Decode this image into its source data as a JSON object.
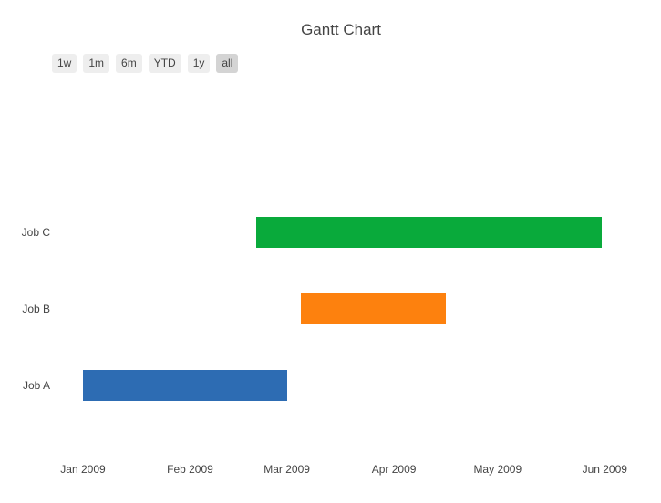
{
  "title": "Gantt Chart",
  "range_selector": {
    "text_color": "#444444",
    "button_bg": "#eeeeee",
    "active_bg": "#d4d4d4",
    "buttons": [
      {
        "label": "1w",
        "active": false
      },
      {
        "label": "1m",
        "active": false
      },
      {
        "label": "6m",
        "active": false
      },
      {
        "label": "YTD",
        "active": false
      },
      {
        "label": "1y",
        "active": false
      },
      {
        "label": "all",
        "active": true
      }
    ]
  },
  "chart_data": {
    "type": "bar",
    "subtype": "gantt",
    "title": "Gantt Chart",
    "orientation": "horizontal",
    "grid": false,
    "legend": false,
    "x_axis_type": "date",
    "x_range": [
      "2009-01-01",
      "2009-06-01"
    ],
    "tasks": [
      {
        "name": "Job A",
        "start": "2009-01-01",
        "finish": "2009-02-28",
        "color": "#2d6cb3"
      },
      {
        "name": "Job B",
        "start": "2009-03-05",
        "finish": "2009-04-15",
        "color": "#fd810e"
      },
      {
        "name": "Job C",
        "start": "2009-02-20",
        "finish": "2009-05-30",
        "color": "#09aa3b"
      }
    ],
    "y_order_bottom_to_top": [
      "Job A",
      "Job B",
      "Job C"
    ],
    "x_ticks": [
      {
        "label": "Jan 2009",
        "date": "2009-01-01"
      },
      {
        "label": "Feb 2009",
        "date": "2009-02-01"
      },
      {
        "label": "Mar 2009",
        "date": "2009-03-01"
      },
      {
        "label": "Apr 2009",
        "date": "2009-04-01"
      },
      {
        "label": "May 2009",
        "date": "2009-05-01"
      },
      {
        "label": "Jun 2009",
        "date": "2009-06-01"
      }
    ]
  }
}
